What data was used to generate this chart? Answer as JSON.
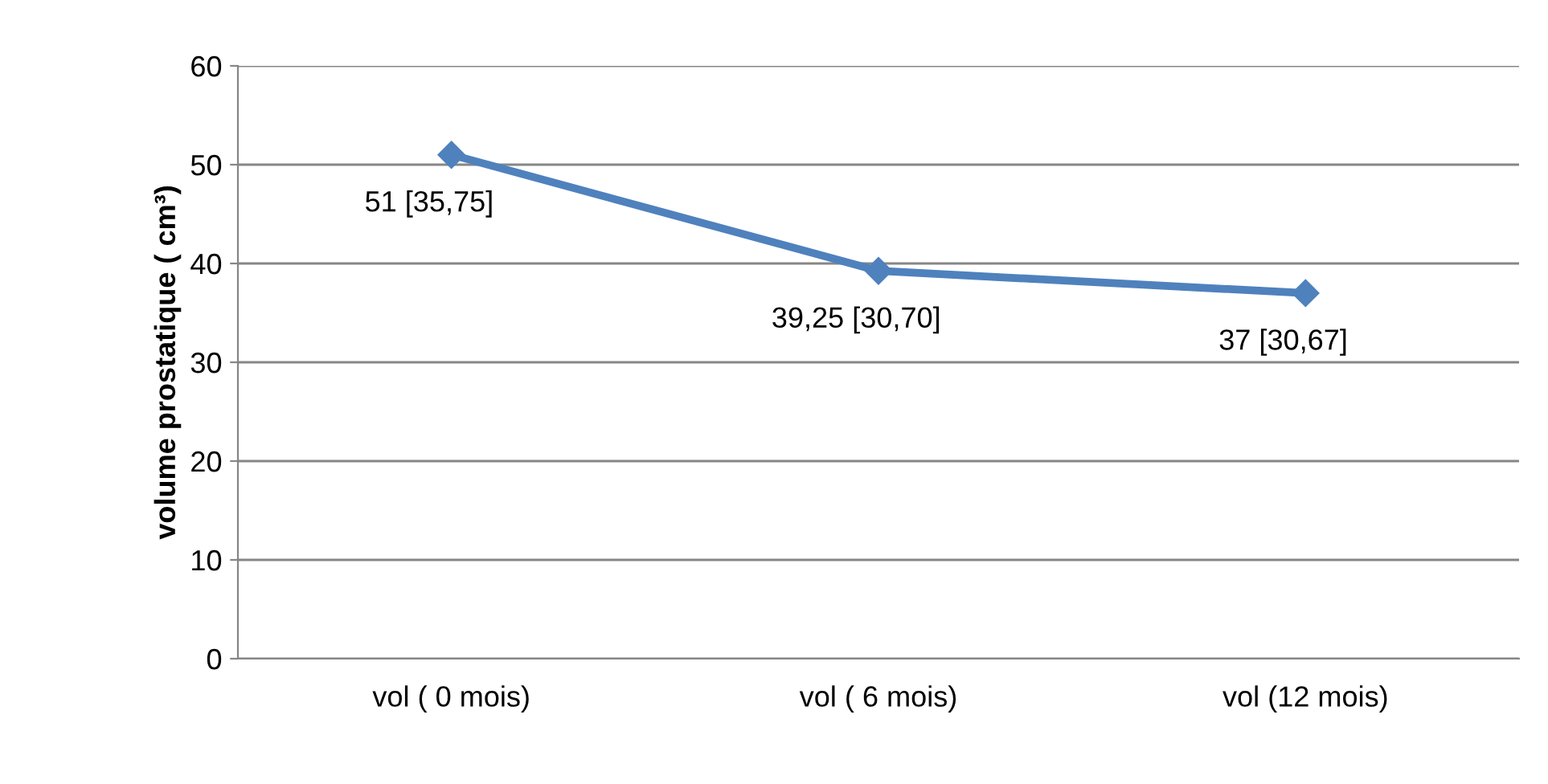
{
  "chart_data": {
    "type": "line",
    "ylabel": "volume prostatique ( cm³)",
    "categories": [
      "vol ( 0 mois)",
      "vol ( 6 mois)",
      "vol (12 mois)"
    ],
    "series": [
      {
        "color": "#4f81bd",
        "values": [
          51,
          39.25,
          37
        ],
        "value_labels": [
          "51 [35,75]",
          "39,25 [30,70]",
          "37 [30,67]"
        ]
      }
    ],
    "ylim": [
      0,
      60
    ],
    "yticks": [
      0,
      10,
      20,
      30,
      40,
      50,
      60
    ],
    "grid": "y",
    "legend": false,
    "marker": "diamond",
    "line_style": "solid"
  }
}
